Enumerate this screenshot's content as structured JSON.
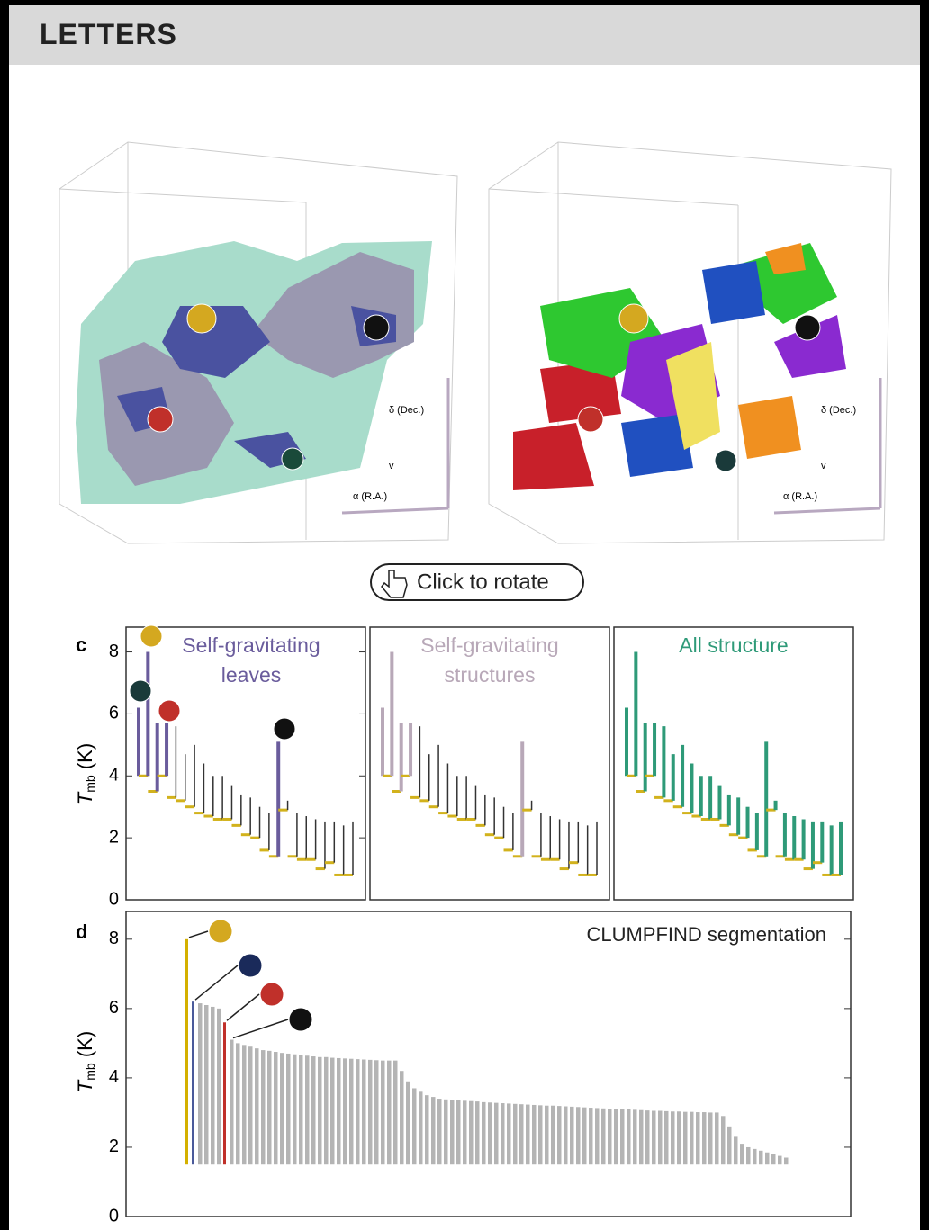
{
  "header": {
    "title": "LETTERS"
  },
  "viewer": {
    "axis_labels": [
      "δ (Dec.)",
      "v",
      "α (R.A.)"
    ],
    "button": "Click to rotate"
  },
  "chart_data": [
    {
      "type": "dendrogram",
      "panel_label": "c",
      "ylabel": {
        "symbol": "T",
        "subscript": "mb",
        "unit": "(K)"
      },
      "ylim": [
        0,
        8.8
      ],
      "yticks": [
        0,
        2,
        4,
        6,
        8
      ],
      "trunk_color": "#d2b21c",
      "color": "#333333",
      "values": [
        6.2,
        8.0,
        5.7,
        5.7,
        5.6,
        4.7,
        5.0,
        4.4,
        4.0,
        4.0,
        3.7,
        3.4,
        3.3,
        3.0,
        2.8,
        5.1,
        3.2,
        2.8,
        2.7,
        2.6,
        2.5,
        2.5,
        2.4,
        2.5
      ],
      "bases": [
        4.0,
        4.0,
        3.5,
        4.0,
        3.3,
        3.2,
        3.0,
        2.8,
        2.7,
        2.6,
        2.6,
        2.4,
        2.1,
        2.0,
        1.6,
        1.4,
        2.9,
        1.4,
        1.3,
        1.3,
        1.0,
        1.2,
        0.8,
        0.8
      ],
      "panels": [
        {
          "title": [
            "Self-gravitating",
            "leaves"
          ],
          "color": "#6a5c9c",
          "selected": [
            true,
            true,
            true,
            true,
            false,
            false,
            false,
            false,
            false,
            false,
            false,
            false,
            false,
            false,
            false,
            true,
            false,
            false,
            false,
            false,
            false,
            false,
            false,
            false
          ]
        },
        {
          "title": [
            "Self-gravitating",
            "structures"
          ],
          "color": "#b8a8b8",
          "selected": [
            true,
            true,
            true,
            true,
            false,
            false,
            false,
            false,
            false,
            false,
            false,
            false,
            false,
            false,
            false,
            true,
            false,
            false,
            false,
            false,
            false,
            false,
            false,
            false
          ]
        },
        {
          "title": [
            "All structure"
          ],
          "color": "#2e9a78",
          "selected": [
            true,
            true,
            true,
            true,
            true,
            true,
            true,
            true,
            true,
            true,
            true,
            true,
            true,
            true,
            true,
            true,
            true,
            true,
            true,
            true,
            true,
            true,
            true,
            true
          ]
        }
      ]
    },
    {
      "type": "bar",
      "panel_label": "d",
      "title": "CLUMPFIND segmentation",
      "ylabel": {
        "symbol": "T",
        "subscript": "mb",
        "unit": "(K)"
      },
      "ylim": [
        0,
        8.8
      ],
      "yticks": [
        0,
        2,
        4,
        6,
        8
      ],
      "baseline": 1.5,
      "color": "#b4b4b4",
      "highlight": {
        "0": "#d4b000",
        "1": "#4a5a9a",
        "6": "#c0302a"
      },
      "values": [
        8.0,
        6.2,
        6.15,
        6.1,
        6.05,
        6.0,
        5.6,
        5.1,
        5.0,
        4.95,
        4.9,
        4.85,
        4.8,
        4.78,
        4.75,
        4.72,
        4.7,
        4.68,
        4.66,
        4.64,
        4.62,
        4.6,
        4.6,
        4.58,
        4.57,
        4.56,
        4.55,
        4.54,
        4.53,
        4.52,
        4.51,
        4.5,
        4.5,
        4.5,
        4.2,
        3.9,
        3.7,
        3.6,
        3.5,
        3.45,
        3.4,
        3.38,
        3.36,
        3.35,
        3.34,
        3.33,
        3.32,
        3.3,
        3.29,
        3.28,
        3.27,
        3.26,
        3.25,
        3.24,
        3.23,
        3.22,
        3.21,
        3.2,
        3.2,
        3.19,
        3.18,
        3.17,
        3.16,
        3.15,
        3.14,
        3.13,
        3.12,
        3.11,
        3.1,
        3.1,
        3.09,
        3.08,
        3.07,
        3.06,
        3.05,
        3.05,
        3.04,
        3.03,
        3.03,
        3.02,
        3.02,
        3.01,
        3.01,
        3.0,
        3.0,
        2.9,
        2.6,
        2.3,
        2.1,
        2.0,
        1.95,
        1.9,
        1.85,
        1.8,
        1.75,
        1.7
      ]
    }
  ]
}
